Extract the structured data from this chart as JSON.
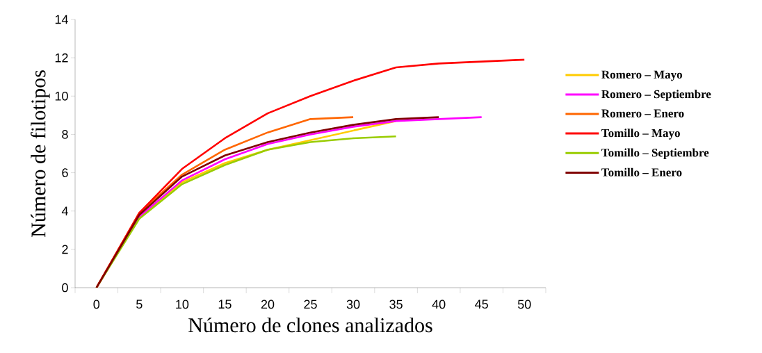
{
  "chart_data": {
    "type": "line",
    "xlabel": "Número de clones analizados",
    "ylabel": "Número de filotipos",
    "categories": [
      "0",
      "5",
      "10",
      "15",
      "20",
      "25",
      "30",
      "35",
      "40",
      "45",
      "50"
    ],
    "series": [
      {
        "name": "Romero – Mayo",
        "color": "#ffcc00",
        "values": [
          0,
          3.7,
          5.5,
          6.5,
          7.2,
          7.7,
          8.2,
          8.7,
          null,
          null,
          null
        ]
      },
      {
        "name": "Romero – Septiembre",
        "color": "#ff00ff",
        "values": [
          0,
          3.7,
          5.6,
          6.7,
          7.5,
          8.0,
          8.4,
          8.7,
          8.8,
          8.9,
          null
        ]
      },
      {
        "name": "Romero – Enero",
        "color": "#ff6600",
        "values": [
          0,
          3.9,
          5.9,
          7.2,
          8.1,
          8.8,
          8.9,
          null,
          null,
          null,
          null
        ]
      },
      {
        "name": "Tomillo – Mayo",
        "color": "#ff0000",
        "values": [
          0,
          3.9,
          6.2,
          7.8,
          9.1,
          10.0,
          10.8,
          11.5,
          11.7,
          11.8,
          11.9
        ]
      },
      {
        "name": "Tomillo – Septiembre",
        "color": "#99cc00",
        "values": [
          0,
          3.6,
          5.4,
          6.4,
          7.2,
          7.6,
          7.8,
          7.9,
          null,
          null,
          null
        ]
      },
      {
        "name": "Tomillo – Enero",
        "color": "#800000",
        "values": [
          0,
          3.8,
          5.8,
          6.9,
          7.6,
          8.1,
          8.5,
          8.8,
          8.9,
          null,
          null
        ]
      }
    ],
    "ylim": [
      0,
      14
    ],
    "yticks": [
      0,
      2,
      4,
      6,
      8,
      10,
      12,
      14
    ],
    "grid": false,
    "legend": "right",
    "marker": "none",
    "line_style": "solid"
  }
}
